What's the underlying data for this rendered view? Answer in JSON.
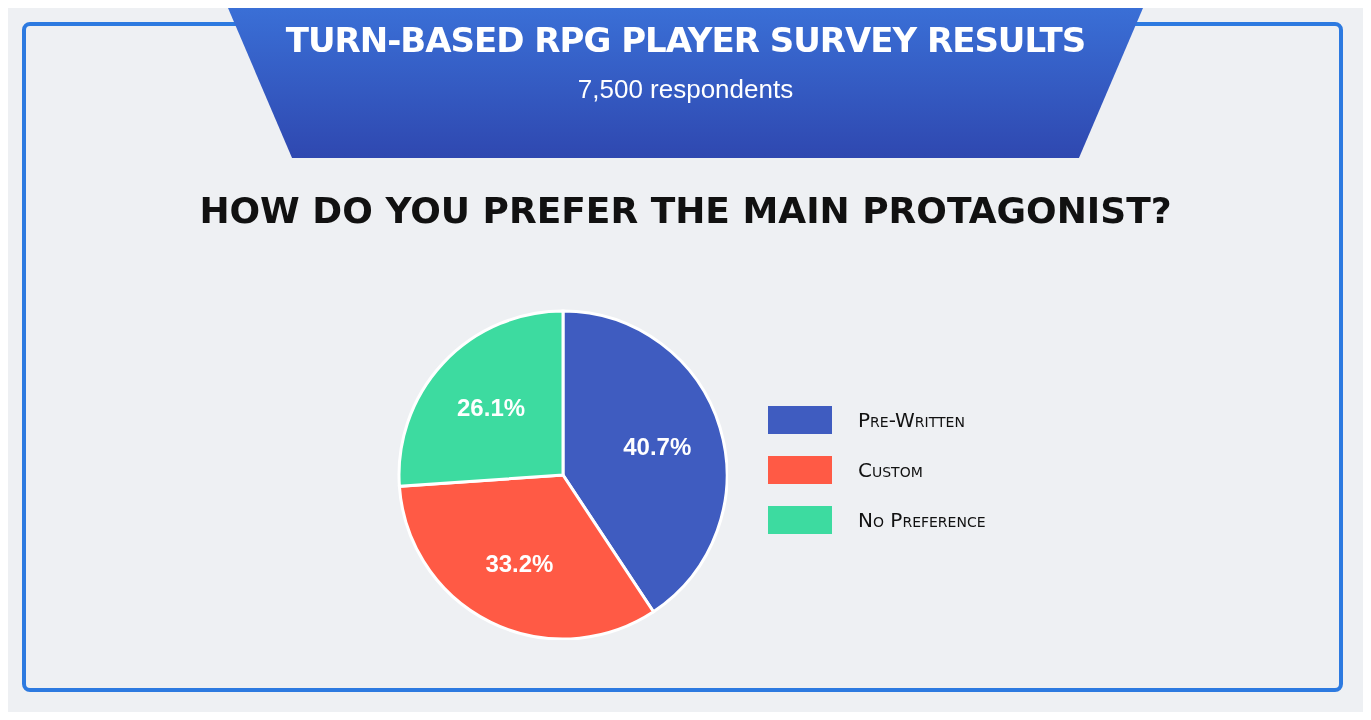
{
  "chart_data": {
    "type": "pie",
    "title": "TURN-BASED RPG PLAYER SURVEY RESULTS",
    "subtitle": "HOW DO YOU PREFER THE MAIN PROTAGONIST?",
    "annotations": [
      "7,500 respondents"
    ],
    "categories": [
      "Pre-Written",
      "Custom",
      "No Preference"
    ],
    "values": [
      40.7,
      33.2,
      26.1
    ],
    "colors": [
      "#3f5cc0",
      "#ff5a45",
      "#3ddba0"
    ],
    "value_labels": [
      "40.7%",
      "33.2%",
      "26.1%"
    ],
    "legend": "right"
  }
}
